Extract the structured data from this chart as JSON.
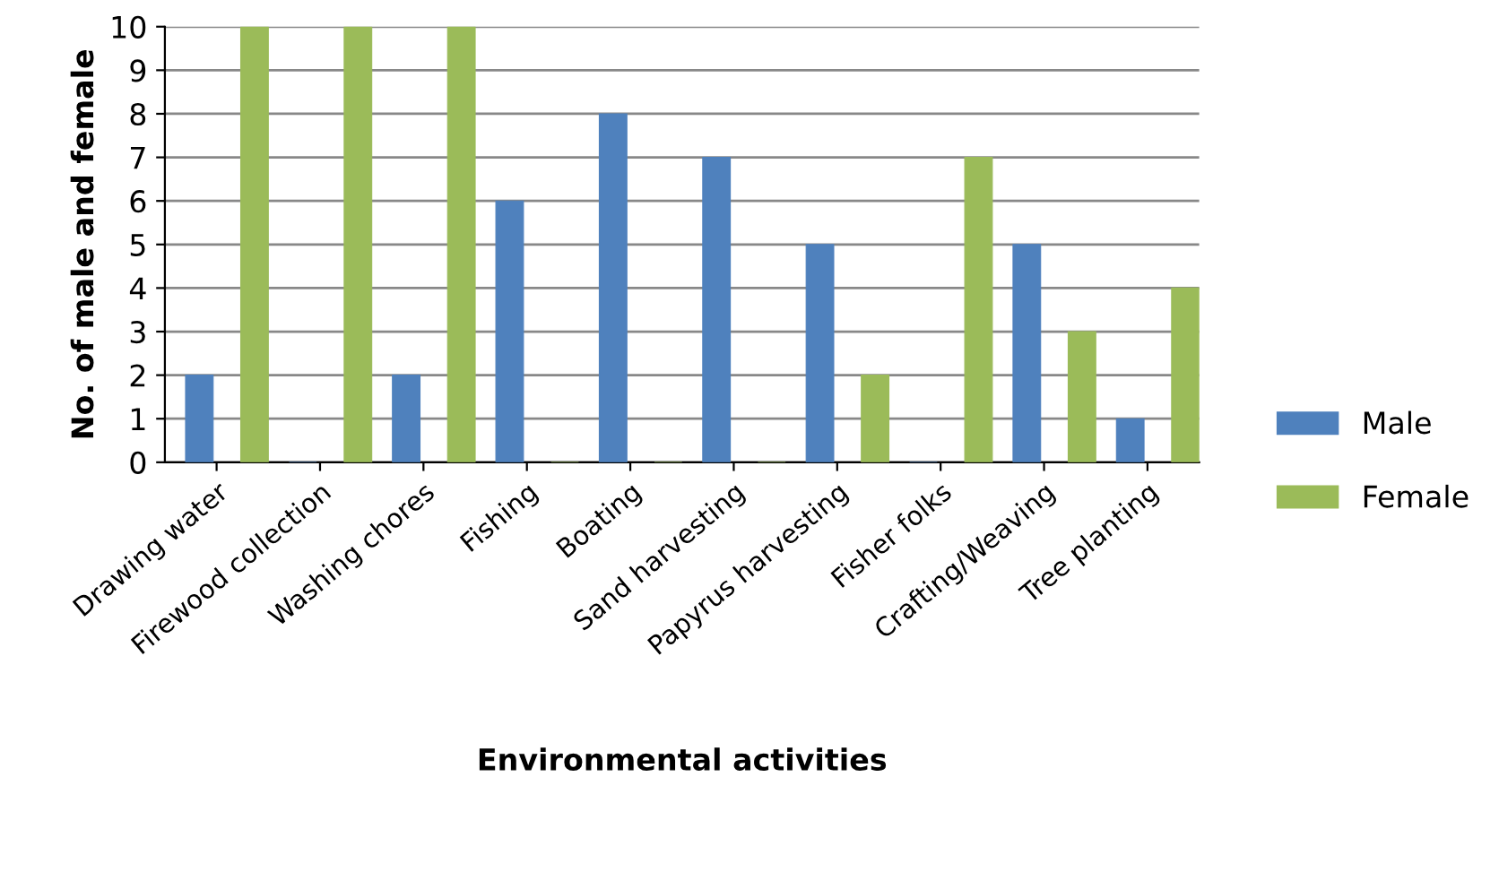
{
  "chart_data": {
    "type": "bar",
    "xlabel": "Environmental activities",
    "ylabel": "No. of male and female",
    "categories": [
      "Drawing water",
      "Firewood collection",
      "Washing chores",
      "Fishing",
      "Boating",
      "Sand harvesting",
      "Papyrus harvesting",
      "Fisher folks",
      "Crafting/Weaving",
      "Tree planting"
    ],
    "series": [
      {
        "name": "Male",
        "color": "#4f81bd",
        "values": [
          2,
          0,
          2,
          6,
          8,
          7,
          5,
          0,
          5,
          1
        ]
      },
      {
        "name": "Female",
        "color": "#9bbb59",
        "values": [
          10,
          10,
          10,
          0,
          0,
          0,
          2,
          7,
          3,
          4
        ]
      }
    ],
    "ylim": [
      0,
      10
    ],
    "yticks": [
      0,
      1,
      2,
      3,
      4,
      5,
      6,
      7,
      8,
      9,
      10
    ],
    "grid": "y",
    "legend": "right"
  }
}
